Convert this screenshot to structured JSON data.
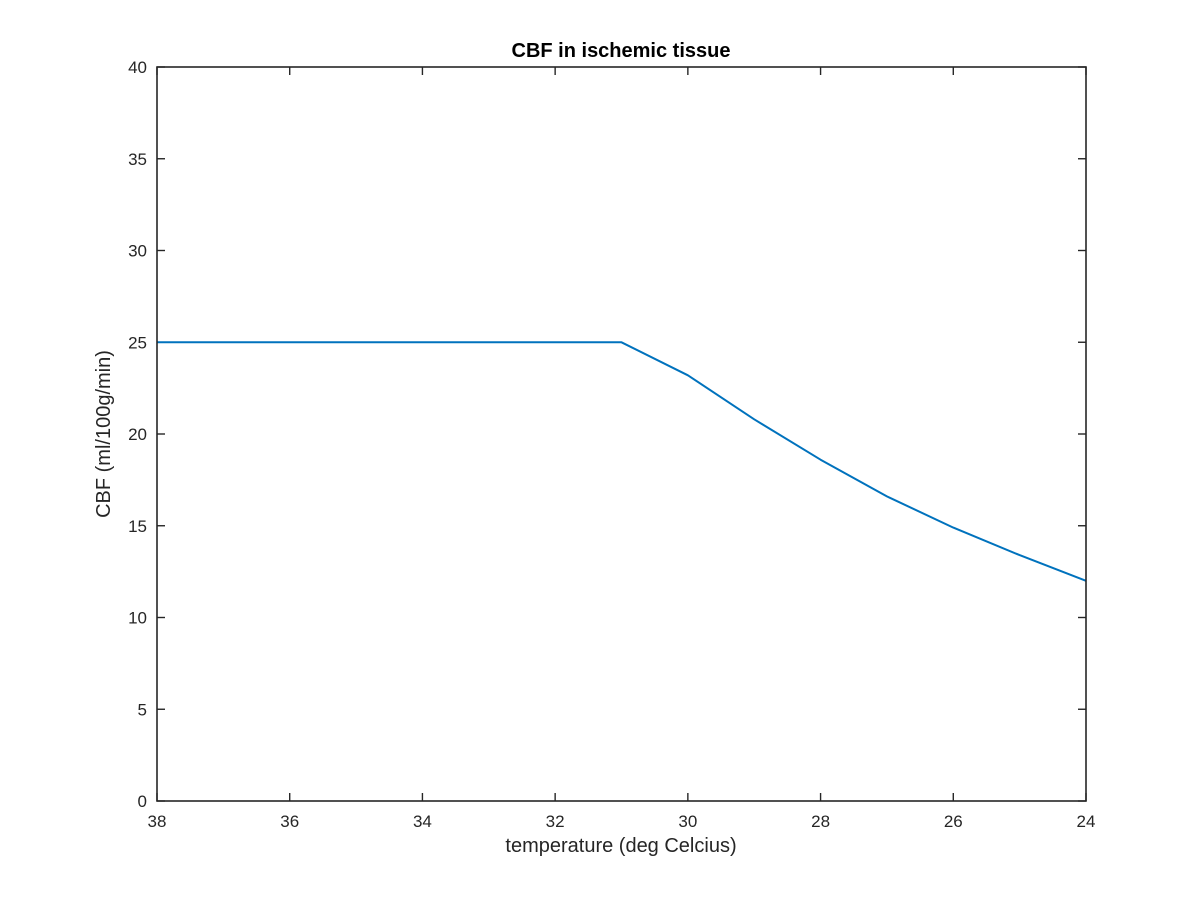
{
  "chart_data": {
    "type": "line",
    "title": "CBF in ischemic tissue",
    "xlabel": "temperature (deg Celcius)",
    "ylabel": "CBF (ml/100g/min)",
    "xlim": [
      38,
      24
    ],
    "ylim": [
      0,
      40
    ],
    "x_reversed": true,
    "grid": false,
    "xticks": [
      38,
      36,
      34,
      32,
      30,
      28,
      26,
      24
    ],
    "yticks": [
      0,
      5,
      10,
      15,
      20,
      25,
      30,
      35,
      40
    ],
    "series": [
      {
        "color": "#0072bd",
        "x": [
          38,
          37,
          36,
          35,
          34,
          33,
          32,
          31,
          30,
          29,
          28,
          27,
          26,
          25,
          24
        ],
        "y": [
          25,
          25,
          25,
          25,
          25,
          25,
          25,
          25,
          23.2,
          20.8,
          18.6,
          16.6,
          14.9,
          13.4,
          12.0
        ]
      }
    ]
  }
}
